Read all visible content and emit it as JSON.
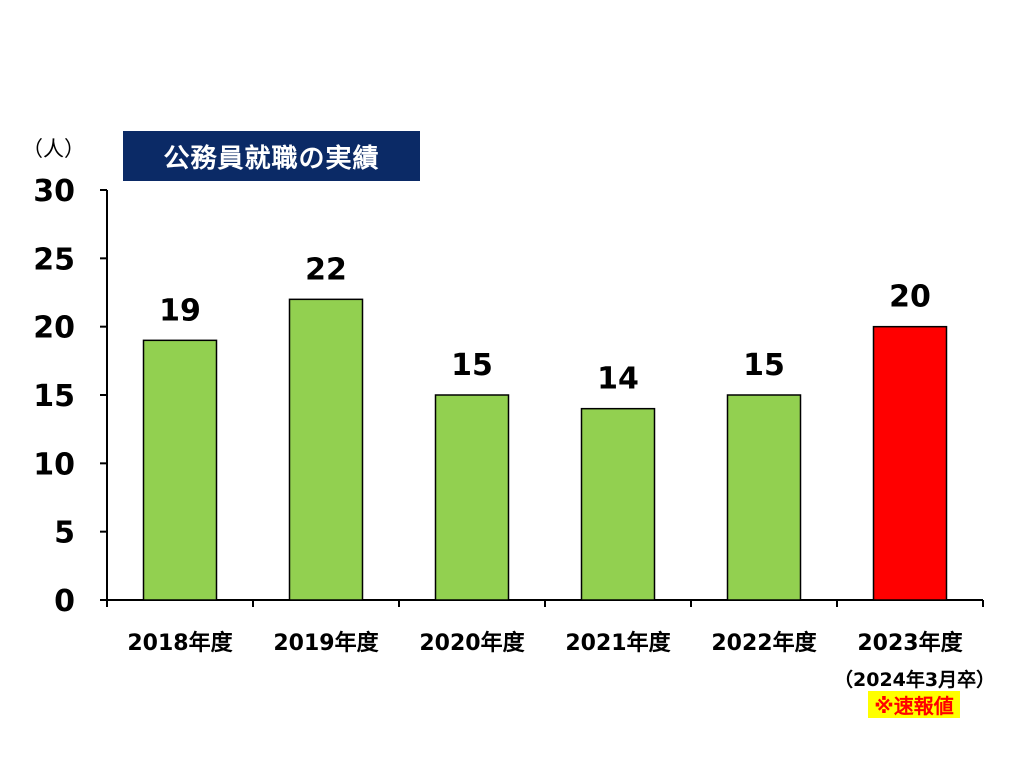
{
  "chart_data": {
    "type": "bar",
    "title": "公務員就職の実績",
    "unit_label": "（人）",
    "categories": [
      "2018年度",
      "2019年度",
      "2020年度",
      "2021年度",
      "2022年度",
      "2023年度"
    ],
    "values": [
      19,
      22,
      15,
      14,
      15,
      20
    ],
    "data_labels": [
      "19",
      "22",
      "15",
      "14",
      "15",
      "20"
    ],
    "y_ticks": [
      "0",
      "5",
      "10",
      "15",
      "20",
      "25",
      "30"
    ],
    "ylim": [
      0,
      30
    ],
    "grid": false,
    "bar_colors": [
      "#92d050",
      "#92d050",
      "#92d050",
      "#92d050",
      "#92d050",
      "#ff0000"
    ],
    "last_category_note": "（2024年3月卒）",
    "last_category_flag": "※速報値"
  }
}
